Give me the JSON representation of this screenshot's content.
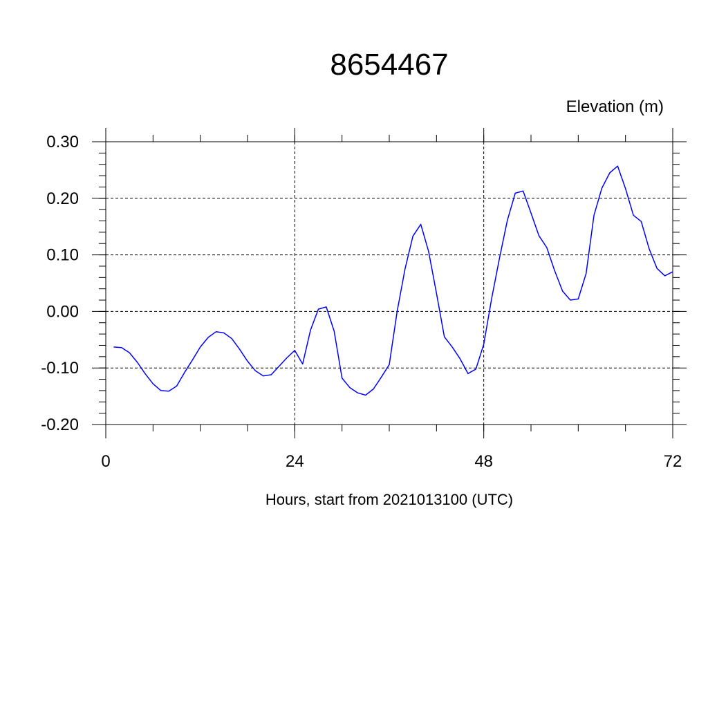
{
  "chart_data": {
    "type": "line",
    "title": "8654467",
    "ylabel": "Elevation (m)",
    "xlabel": "Hours, start from 2021013100 (UTC)",
    "xlim": [
      0,
      72
    ],
    "ylim": [
      -0.2,
      0.3
    ],
    "x_ticks": [
      0,
      24,
      48,
      72
    ],
    "x_tick_labels": [
      "0",
      "24",
      "48",
      "72"
    ],
    "y_ticks": [
      -0.2,
      -0.1,
      0.0,
      0.1,
      0.2,
      0.3
    ],
    "y_tick_labels": [
      "-0.20",
      "-0.10",
      "0.00",
      "0.10",
      "0.20",
      "0.30"
    ],
    "grid": true,
    "colors": {
      "line": "#0000ff",
      "grid": "#000000",
      "axes": "#000000"
    },
    "series": [
      {
        "x": [
          1,
          2,
          3,
          4,
          5,
          6,
          7,
          8,
          9,
          10,
          11,
          12,
          13,
          14,
          15,
          16,
          17,
          18,
          19,
          20,
          21,
          22,
          23,
          24,
          25,
          26,
          27,
          28,
          29,
          30,
          31,
          32,
          33,
          34,
          35,
          36,
          37,
          38,
          39,
          40,
          41,
          42,
          43,
          44,
          45,
          46,
          47,
          48,
          49,
          50,
          51,
          52,
          53,
          54,
          55,
          56,
          57,
          58,
          59,
          60,
          61,
          62,
          63,
          64,
          65,
          66,
          67,
          68,
          69,
          70,
          71,
          72
        ],
        "values": [
          -0.063,
          -0.064,
          -0.073,
          -0.09,
          -0.11,
          -0.128,
          -0.14,
          -0.141,
          -0.132,
          -0.108,
          -0.086,
          -0.063,
          -0.046,
          -0.036,
          -0.038,
          -0.048,
          -0.067,
          -0.088,
          -0.105,
          -0.114,
          -0.112,
          -0.097,
          -0.082,
          -0.069,
          -0.093,
          -0.033,
          0.004,
          0.008,
          -0.035,
          -0.118,
          -0.135,
          -0.144,
          -0.148,
          -0.137,
          -0.116,
          -0.094,
          0.0,
          0.075,
          0.133,
          0.154,
          0.106,
          0.032,
          -0.045,
          -0.063,
          -0.084,
          -0.11,
          -0.102,
          -0.058,
          0.023,
          0.094,
          0.161,
          0.209,
          0.213,
          0.174,
          0.134,
          0.113,
          0.072,
          0.036,
          0.02,
          0.022,
          0.067,
          0.17,
          0.218,
          0.245,
          0.257,
          0.217,
          0.17,
          0.159,
          0.111,
          0.076,
          0.063,
          0.07
        ]
      }
    ]
  }
}
